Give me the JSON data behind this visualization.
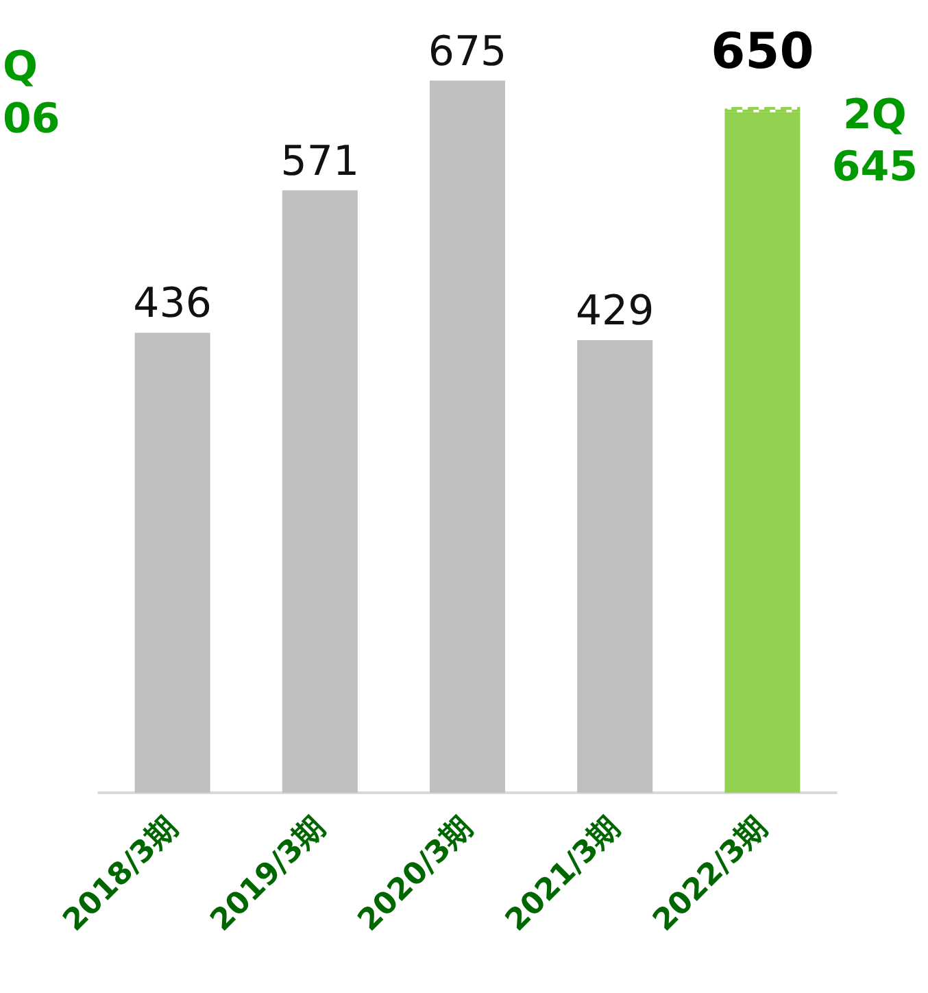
{
  "chart_data": {
    "type": "bar",
    "stacked": true,
    "categories": [
      "2018/3期",
      "2019/3期",
      "2020/3期",
      "2021/3期",
      "2022/3期"
    ],
    "series": [
      {
        "colors": [
          "#bfbfbf",
          "#bfbfbf",
          "#bfbfbf",
          "#bfbfbf",
          "#92d050"
        ],
        "values": [
          436,
          571,
          675,
          429,
          645
        ],
        "value_labels": [
          "436",
          "571",
          "675",
          "429",
          null
        ]
      },
      {
        "color": "#92d050",
        "line_style": "dashed",
        "values": [
          null,
          null,
          null,
          null,
          5
        ]
      }
    ],
    "totals": [
      null,
      null,
      null,
      null,
      "650"
    ],
    "annotations": [
      {
        "text": "2Q\n645",
        "x": "2022/3期",
        "y": 645
      },
      "Q\n06"
    ]
  }
}
